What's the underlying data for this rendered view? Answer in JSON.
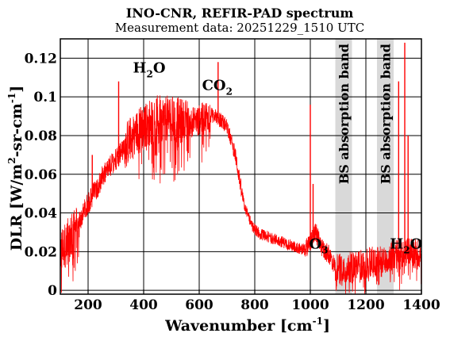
{
  "chart_data": {
    "type": "line",
    "title": "INO-CNR, REFIR-PAD spectrum",
    "subtitle": "Measurement data: 20251229_1510 UTC",
    "xlabel": {
      "main": "Wavenumber [cm",
      "sup": "-1",
      "tail": "]"
    },
    "ylabel": {
      "part1": "DLR [W/m",
      "sup1": "2",
      "part2": "-sr-cm",
      "sup2": "-1",
      "tail": "]"
    },
    "xlim": [
      100,
      1400
    ],
    "ylim": [
      -0.002,
      0.13
    ],
    "x_ticks": [
      200,
      400,
      600,
      800,
      1000,
      1200,
      1400
    ],
    "y_ticks": [
      0,
      0.02,
      0.04,
      0.06,
      0.08,
      0.1,
      0.12
    ],
    "y_tick_labels": [
      "0",
      "0.02",
      "0.04",
      "0.06",
      "0.08",
      "0.1",
      "0.12"
    ],
    "grid": true,
    "series_color": "#ff0000",
    "band_color": "#d9d9d9",
    "bands": [
      {
        "x0": 1090,
        "x1": 1150,
        "label": "BS absorption band"
      },
      {
        "x0": 1240,
        "x1": 1300,
        "label": "BS absorption band"
      }
    ],
    "annotations": [
      {
        "base": "H",
        "sub": "2",
        "tail": "O",
        "x": 420,
        "y": 0.1125
      },
      {
        "base": "CO",
        "sub": "2",
        "tail": "",
        "x": 665,
        "y": 0.1035
      },
      {
        "base": "O",
        "sub": "3",
        "tail": "",
        "x": 1030,
        "y": 0.0215
      },
      {
        "base": "H",
        "sub": "2",
        "tail": "O",
        "x": 1345,
        "y": 0.0215
      }
    ],
    "envelope": [
      [
        100,
        0.02
      ],
      [
        150,
        0.03
      ],
      [
        200,
        0.045
      ],
      [
        250,
        0.058
      ],
      [
        300,
        0.068
      ],
      [
        350,
        0.078
      ],
      [
        400,
        0.085
      ],
      [
        450,
        0.089
      ],
      [
        500,
        0.089
      ],
      [
        550,
        0.087
      ],
      [
        600,
        0.088
      ],
      [
        630,
        0.091
      ],
      [
        660,
        0.09
      ],
      [
        700,
        0.085
      ],
      [
        730,
        0.07
      ],
      [
        760,
        0.045
      ],
      [
        790,
        0.033
      ],
      [
        820,
        0.029
      ],
      [
        860,
        0.027
      ],
      [
        900,
        0.025
      ],
      [
        950,
        0.022
      ],
      [
        980,
        0.021
      ],
      [
        1000,
        0.025
      ],
      [
        1020,
        0.03
      ],
      [
        1040,
        0.022
      ],
      [
        1070,
        0.018
      ],
      [
        1090,
        0.012
      ],
      [
        1150,
        0.012
      ],
      [
        1200,
        0.014
      ],
      [
        1240,
        0.015
      ],
      [
        1300,
        0.018
      ],
      [
        1330,
        0.019
      ],
      [
        1360,
        0.02
      ],
      [
        1400,
        0.018
      ]
    ],
    "spikes": [
      {
        "x": 668,
        "y": 0.118
      },
      {
        "x": 1000,
        "y": 0.096
      },
      {
        "x": 1010,
        "y": 0.055
      },
      {
        "x": 1318,
        "y": 0.108
      },
      {
        "x": 1340,
        "y": 0.128
      },
      {
        "x": 1352,
        "y": 0.08
      },
      {
        "x": 310,
        "y": 0.108
      },
      {
        "x": 215,
        "y": 0.07
      }
    ]
  }
}
